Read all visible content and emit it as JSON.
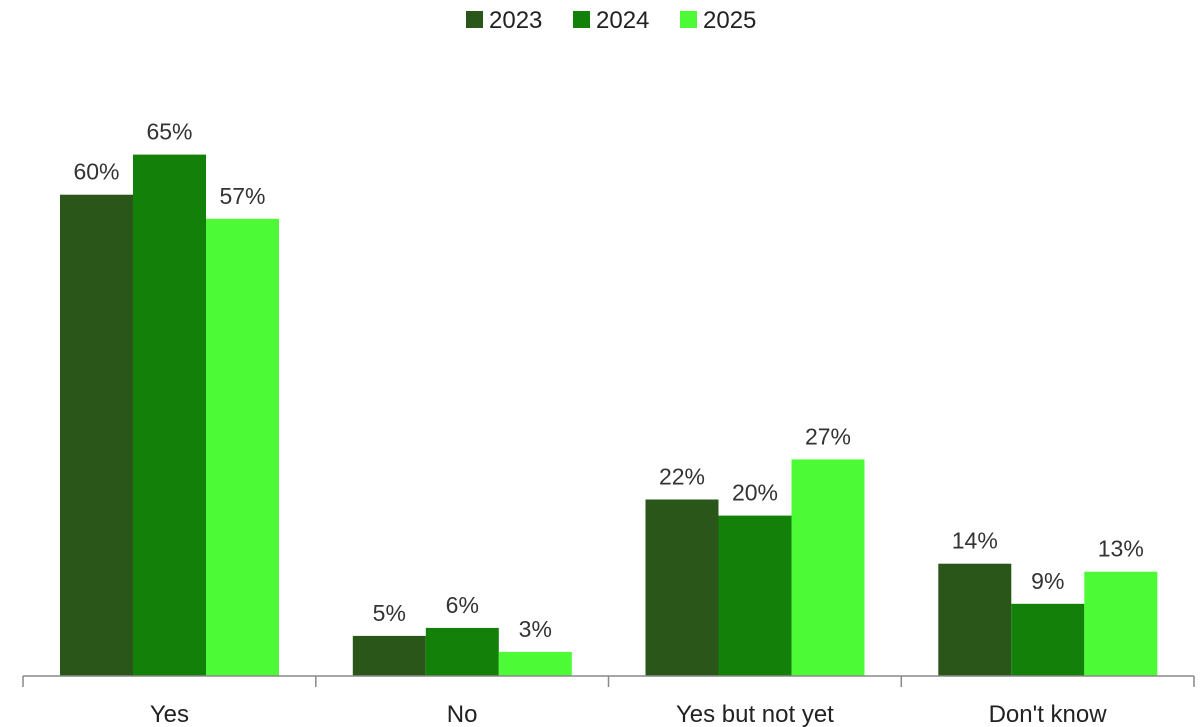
{
  "chart_data": {
    "type": "bar",
    "categories": [
      "Yes",
      "No",
      "Yes but not yet",
      "Don't know"
    ],
    "series": [
      {
        "name": "2023",
        "color": "#2a561a",
        "values": [
          60,
          5,
          22,
          14
        ],
        "labels": [
          "60%",
          "5%",
          "22%",
          "14%"
        ]
      },
      {
        "name": "2024",
        "color": "#128009",
        "values": [
          65,
          6,
          20,
          9
        ],
        "labels": [
          "65%",
          "6%",
          "20%",
          "9%"
        ]
      },
      {
        "name": "2025",
        "color": "#4cfa36",
        "values": [
          57,
          3,
          27,
          13
        ],
        "labels": [
          "57%",
          "3%",
          "27%",
          "13%"
        ]
      }
    ],
    "value_suffix": "%",
    "ylim": [
      0,
      70
    ],
    "grid": false,
    "legend": "top-center",
    "title": "",
    "xlabel": "",
    "ylabel": ""
  }
}
